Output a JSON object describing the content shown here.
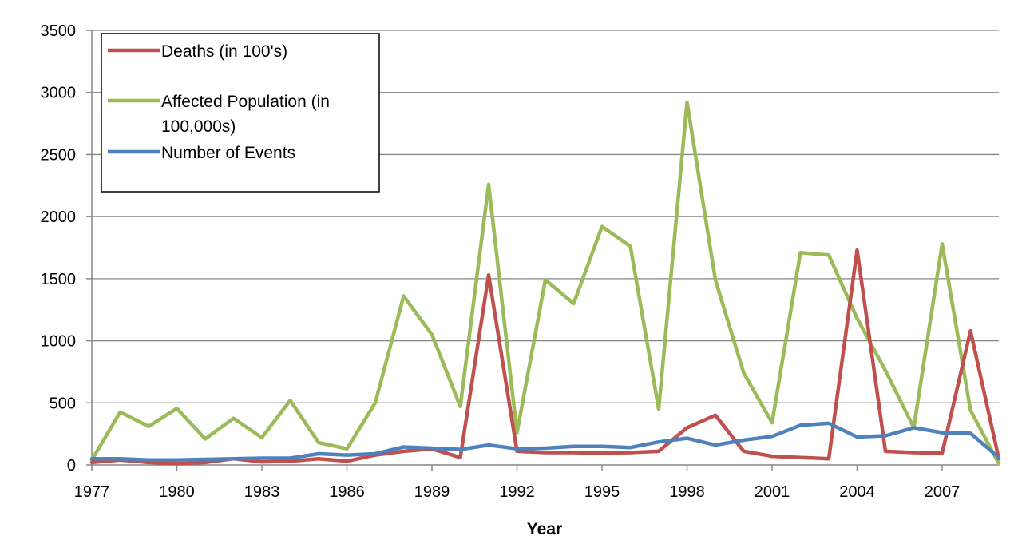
{
  "chart_data": {
    "type": "line",
    "xlabel": "Year",
    "ylabel": "",
    "xlim": [
      1977,
      2009
    ],
    "ylim": [
      0,
      3500
    ],
    "y_ticks": [
      0,
      500,
      1000,
      1500,
      2000,
      2500,
      3000,
      3500
    ],
    "x_tick_labels": [
      "1977",
      "1980",
      "1983",
      "1986",
      "1989",
      "1992",
      "1995",
      "1998",
      "2001",
      "2004",
      "2007"
    ],
    "grid": "horizontal",
    "legend_position": "top-left",
    "x": [
      1977,
      1978,
      1979,
      1980,
      1981,
      1982,
      1983,
      1984,
      1985,
      1986,
      1987,
      1988,
      1989,
      1990,
      1991,
      1992,
      1993,
      1994,
      1995,
      1996,
      1997,
      1998,
      1999,
      2000,
      2001,
      2002,
      2003,
      2004,
      2005,
      2006,
      2007,
      2008,
      2009
    ],
    "series": [
      {
        "name": "Deaths (in 100's)",
        "color": "#C0504D",
        "values": [
          20,
          40,
          20,
          10,
          20,
          50,
          25,
          30,
          50,
          30,
          80,
          110,
          130,
          60,
          1530,
          110,
          100,
          100,
          95,
          100,
          110,
          300,
          400,
          110,
          70,
          60,
          50,
          1730,
          110,
          100,
          95,
          1080,
          50
        ]
      },
      {
        "name": "Affected Population (in 100,000s)",
        "color": "#9BBB59",
        "values": [
          40,
          425,
          310,
          455,
          210,
          375,
          220,
          520,
          180,
          130,
          500,
          1360,
          1050,
          470,
          2260,
          260,
          1490,
          1300,
          1920,
          1760,
          450,
          2920,
          1490,
          740,
          340,
          1710,
          1690,
          1180,
          760,
          300,
          1780,
          440,
          10
        ]
      },
      {
        "name": "Number of Events",
        "color": "#4F81BD",
        "values": [
          50,
          50,
          40,
          40,
          45,
          50,
          55,
          55,
          90,
          80,
          90,
          145,
          135,
          125,
          160,
          130,
          135,
          150,
          150,
          140,
          185,
          215,
          160,
          200,
          230,
          320,
          335,
          225,
          235,
          300,
          260,
          255,
          60
        ]
      }
    ]
  }
}
